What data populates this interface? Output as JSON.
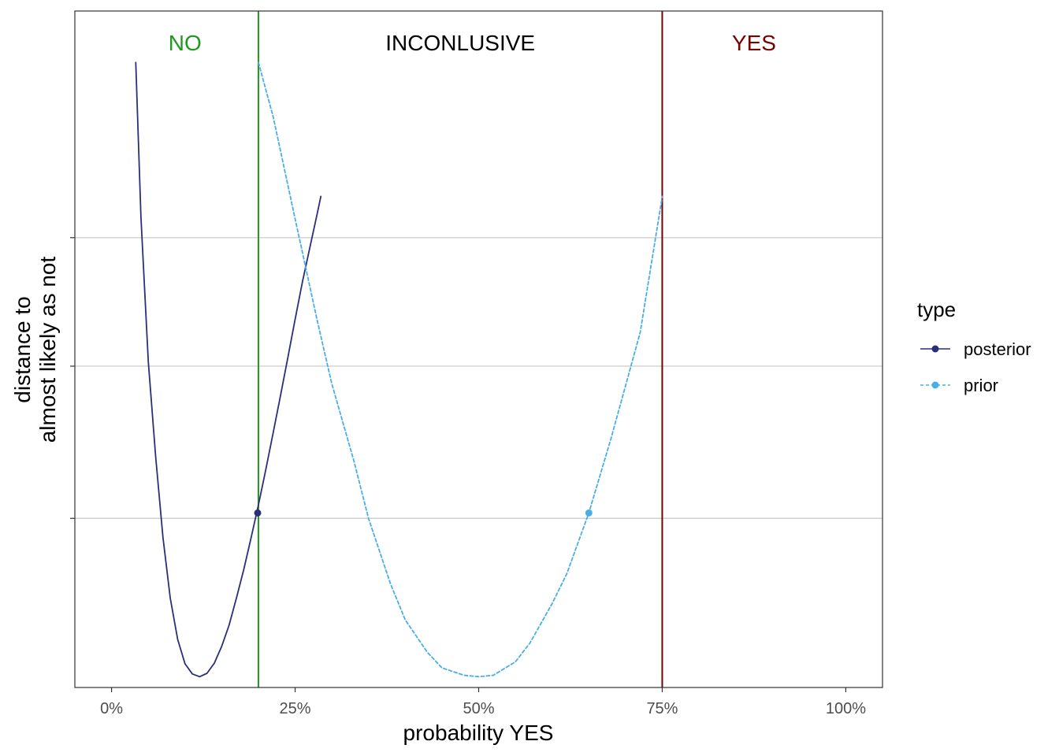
{
  "chart_data": {
    "type": "line",
    "xlabel": "probability YES",
    "ylabel_lines": [
      "distance to",
      "almost likely as not"
    ],
    "xlim": [
      -0.05,
      1.05
    ],
    "ylim": [
      0,
      1
    ],
    "x_ticks": [
      0,
      0.25,
      0.5,
      0.75,
      1.0
    ],
    "x_tick_labels": [
      "0%",
      "25%",
      "50%",
      "75%",
      "100%"
    ],
    "y_gridlines": [
      0.25,
      0.475,
      0.665
    ],
    "grid": "horizontal",
    "thresholds": [
      {
        "x": 0.2,
        "label": "NO",
        "color": "#1f9a1f"
      },
      {
        "x": 0.75,
        "label": "YES",
        "color": "#7b0000"
      }
    ],
    "regions": [
      {
        "label": "NO",
        "x": 0.1,
        "color": "#1f9a1f"
      },
      {
        "label": "INCONLUSIVE",
        "x": 0.475,
        "color": "#000000"
      },
      {
        "label": "YES",
        "x": 0.875,
        "color": "#7b0000"
      }
    ],
    "legend": {
      "title": "type",
      "position": "right"
    },
    "series": [
      {
        "name": "posterior",
        "color": "#2b2f7a",
        "dash": "solid",
        "x": [
          0.033,
          0.04,
          0.05,
          0.06,
          0.07,
          0.08,
          0.09,
          0.1,
          0.11,
          0.12,
          0.13,
          0.14,
          0.15,
          0.16,
          0.17,
          0.18,
          0.19,
          0.2,
          0.21,
          0.22,
          0.23,
          0.24,
          0.25,
          0.26,
          0.27,
          0.28,
          0.285
        ],
        "y": [
          0.924,
          0.695,
          0.482,
          0.342,
          0.222,
          0.132,
          0.071,
          0.035,
          0.02,
          0.016,
          0.021,
          0.036,
          0.061,
          0.092,
          0.132,
          0.174,
          0.221,
          0.27,
          0.322,
          0.376,
          0.431,
          0.487,
          0.544,
          0.6,
          0.65,
          0.7,
          0.726
        ],
        "marker": {
          "x": 0.199,
          "y": 0.258
        }
      },
      {
        "name": "prior",
        "color": "#4aaee6",
        "dash": "dashed",
        "x": [
          0.2,
          0.22,
          0.25,
          0.28,
          0.3,
          0.33,
          0.35,
          0.38,
          0.4,
          0.43,
          0.45,
          0.48,
          0.5,
          0.52,
          0.55,
          0.57,
          0.6,
          0.62,
          0.65,
          0.68,
          0.7,
          0.72,
          0.75
        ],
        "y": [
          0.924,
          0.844,
          0.693,
          0.543,
          0.449,
          0.335,
          0.25,
          0.153,
          0.1,
          0.052,
          0.029,
          0.018,
          0.016,
          0.018,
          0.038,
          0.066,
          0.124,
          0.168,
          0.258,
          0.367,
          0.446,
          0.525,
          0.726
        ],
        "marker": {
          "x": 0.65,
          "y": 0.258
        }
      }
    ]
  }
}
